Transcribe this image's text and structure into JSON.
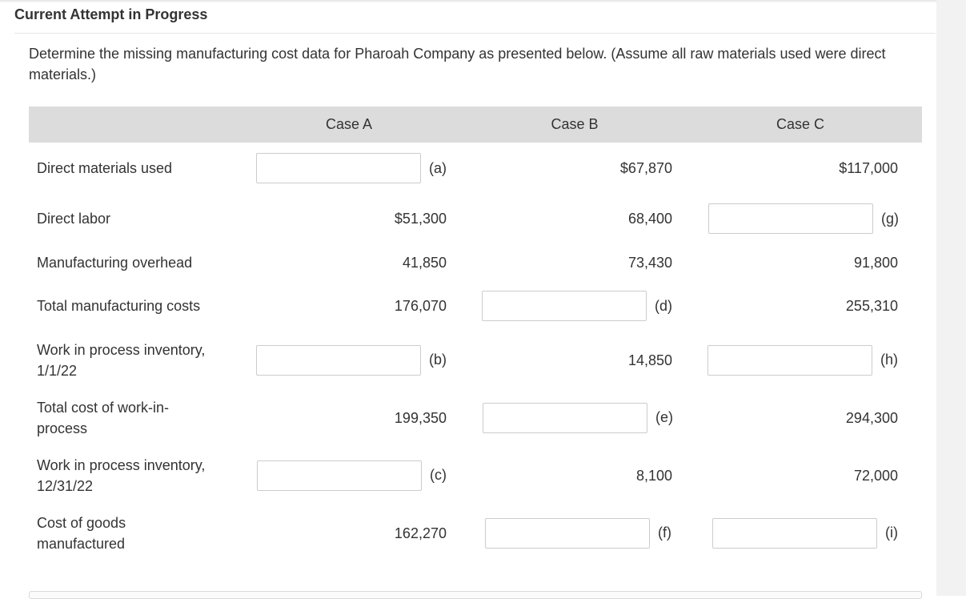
{
  "header": {
    "title": "Current Attempt in Progress"
  },
  "question": {
    "prompt": "Determine the missing manufacturing cost data for Pharoah Company as presented below. (Assume all raw materials used were direct materials.)"
  },
  "table": {
    "columns": [
      "Case A",
      "Case B",
      "Case C"
    ],
    "rows": [
      {
        "label": "Direct materials used",
        "a": "",
        "a_letter": "(a)",
        "b": "$67,870",
        "c": "$117,000"
      },
      {
        "label": "Direct labor",
        "a": "$51,300",
        "b": "68,400",
        "c": "",
        "c_letter": "(g)"
      },
      {
        "label": "Manufacturing overhead",
        "a": "41,850",
        "b": "73,430",
        "c": "91,800"
      },
      {
        "label": "Total manufacturing costs",
        "a": "176,070",
        "b": "",
        "b_letter": "(d)",
        "c": "255,310"
      },
      {
        "label": "Work in process inventory, 1/1/22",
        "a": "",
        "a_letter": "(b)",
        "b": "14,850",
        "c": "",
        "c_letter": "(h)"
      },
      {
        "label": "Total cost of work-in-process",
        "a": "199,350",
        "b": "",
        "b_letter": "(e)",
        "c": "294,300"
      },
      {
        "label": "Work in process inventory, 12/31/22",
        "a": "",
        "a_letter": "(c)",
        "b": "8,100",
        "c": "72,000"
      },
      {
        "label": "Cost of goods manufactured",
        "a": "162,270",
        "b": "",
        "b_letter": "(f)",
        "c": "",
        "c_letter": "(i)"
      }
    ]
  }
}
